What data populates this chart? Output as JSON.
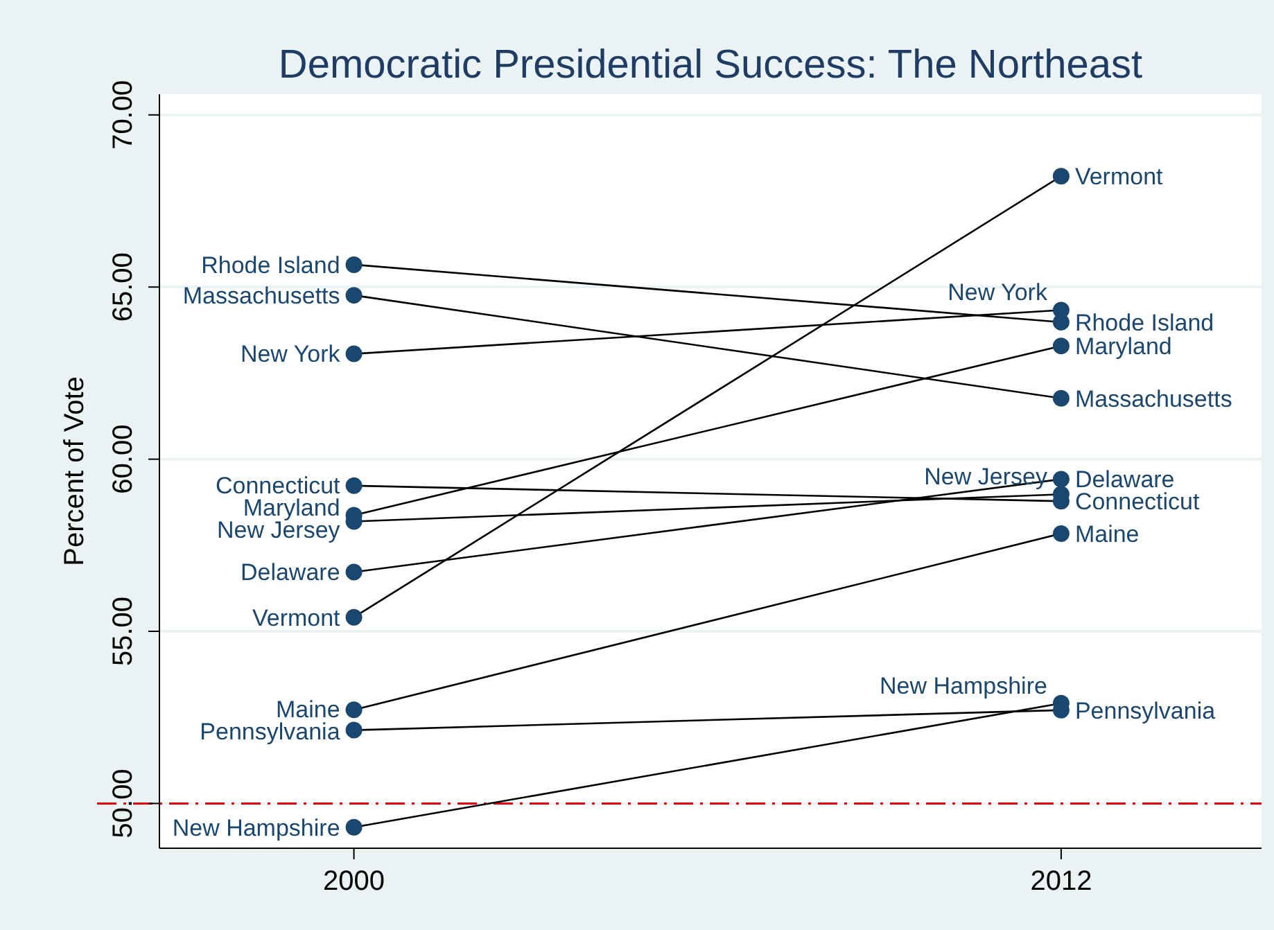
{
  "chart_data": {
    "type": "line",
    "title": "Democratic Presidential Success: The Northeast",
    "ylabel": "Percent of Vote",
    "x": [
      2000,
      2012
    ],
    "xlim": [
      1996.7,
      2015.4
    ],
    "xticks": [
      2000,
      2012
    ],
    "ylim": [
      48.7,
      70.6
    ],
    "yticks": [
      {
        "value": 50,
        "label": "50.00"
      },
      {
        "value": 55,
        "label": "55.00"
      },
      {
        "value": 60,
        "label": "60.00"
      },
      {
        "value": 65,
        "label": "65.00"
      },
      {
        "value": 70,
        "label": "70.00"
      }
    ],
    "grid": "y",
    "marker": "circle",
    "ref_lines": [
      {
        "axis": "y",
        "value": 50,
        "color": "#e8000b",
        "line_style": "dashdot"
      }
    ],
    "series": [
      {
        "name": "Rhode Island",
        "color": "#1a476f",
        "values": [
          65.65,
          63.98
        ]
      },
      {
        "name": "Massachusetts",
        "color": "#1a476f",
        "values": [
          64.76,
          61.77
        ]
      },
      {
        "name": "New York",
        "color": "#1a476f",
        "values": [
          63.06,
          64.33
        ]
      },
      {
        "name": "Connecticut",
        "color": "#1a476f",
        "values": [
          59.23,
          58.78
        ]
      },
      {
        "name": "Maryland",
        "color": "#1a476f",
        "values": [
          58.37,
          63.29
        ]
      },
      {
        "name": "New Jersey",
        "color": "#1a476f",
        "values": [
          58.19,
          58.98
        ]
      },
      {
        "name": "Delaware",
        "color": "#1a476f",
        "values": [
          56.72,
          59.42
        ]
      },
      {
        "name": "Vermont",
        "color": "#1a476f",
        "values": [
          55.41,
          68.22
        ]
      },
      {
        "name": "Maine",
        "color": "#1a476f",
        "values": [
          52.72,
          57.84
        ]
      },
      {
        "name": "Pennsylvania",
        "color": "#1a476f",
        "values": [
          52.13,
          52.71
        ]
      },
      {
        "name": "New Hampshire",
        "color": "#1a476f",
        "values": [
          49.31,
          52.91
        ]
      }
    ]
  }
}
